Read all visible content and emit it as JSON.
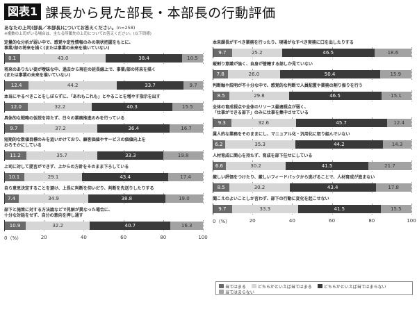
{
  "header": {
    "badge": "図表1",
    "title": "課長から見た部長・本部長の行動評価",
    "question": "あなたの上司(部長／本部長)についてお答えください。",
    "n": "(n=258)",
    "note": "※複数の上司がいる場合は、主たる所属先の上司についてお答えください。(以下同様)"
  },
  "colors": {
    "applies": "#6a6a6a",
    "somewhat_applies": "#d6d6d6",
    "somewhat_not": "#3a3a3a",
    "not_applies": "#a2a2a2"
  },
  "legend": {
    "items": [
      {
        "label": "当てはまる",
        "color": "#6a6a6a"
      },
      {
        "label": "どちらかといえば当てはまる",
        "color": "#d6d6d6"
      },
      {
        "label": "どちらかといえば当てはまらない",
        "color": "#3a3a3a"
      },
      {
        "label": "当てはまらない",
        "color": "#a2a2a2"
      }
    ]
  },
  "axis": {
    "ticks": [
      "0（%）",
      "20",
      "40",
      "60",
      "80",
      "100"
    ]
  },
  "left": {
    "items": [
      {
        "label1": "定量的な分析が弱い中で、感覚や定性情報のみの現状把握をもとに、",
        "label2": "事業/部の将来を描く(または事業の未来を描いていない)",
        "v": [
          "8.1",
          "43.0",
          "38.4",
          "10.5"
        ]
      },
      {
        "label1": "将来のありたい姿が曖昧な中、過去から現在の延長線上で、事業/部の将来を描く",
        "label2": "(または事業の未来を描いていない)",
        "v": [
          "12.4",
          "44.2",
          "33.7",
          "9.7"
        ]
      },
      {
        "label1": "本当にやるべきことをしぼらずに、「あれもこれも」とやることを増やす指示を出す",
        "label2": "",
        "v": [
          "12.0",
          "32.2",
          "40.3",
          "15.5"
        ]
      },
      {
        "label1": "具体的な戦略の仮説を持たず、日々の業務推進のみを行っている",
        "label2": "",
        "v": [
          "9.7",
          "37.2",
          "36.4",
          "16.7"
        ]
      },
      {
        "label1": "短期的な数値目標のみを追いかけており、顧客価値やサービスの価値向上を",
        "label2": "おろそかにしている",
        "v": [
          "11.2",
          "35.7",
          "33.3",
          "19.8"
        ]
      },
      {
        "label1": "上司に対して提言ができず、上からの方針をそのまま下ろしている",
        "label2": "",
        "v": [
          "10.1",
          "29.1",
          "43.4",
          "17.4"
        ]
      },
      {
        "label1": "自ら意思決定することを避け、上長に判断を仰いだり、判断を先送りしたりする",
        "label2": "",
        "v": [
          "7.4",
          "34.9",
          "38.8",
          "19.0"
        ]
      },
      {
        "label1": "部下と施策に対する方法論などで見解が異なった場合に、",
        "label2": "十分な対話をせず、自分の意向を押し通す",
        "v": [
          "10.9",
          "32.2",
          "40.7",
          "16.3"
        ]
      }
    ]
  },
  "right": {
    "items": [
      {
        "label1": "本来課長がすべき業務を行ったり、現場がなすべき実務に口を出したりする",
        "label2": "",
        "v": [
          "9.7",
          "25.2",
          "46.5",
          "18.6"
        ]
      },
      {
        "label1": "縦割り意識が強く、自身が管轄する部しか見ていない",
        "label2": "",
        "v": [
          "7.8",
          "26.0",
          "50.4",
          "15.9"
        ]
      },
      {
        "label1": "判断軸や説明が不十分な中で、感覚的な判断で人員配置や業務の割り振りを行う",
        "label2": "",
        "v": [
          "8.5",
          "29.8",
          "46.5",
          "15.1"
        ]
      },
      {
        "label1": "全体の育成視点や全体のリソース最適視点が弱く、",
        "label2": "「仕事ができる部下」のみに仕事を集中させている",
        "v": [
          "9.3",
          "32.6",
          "45.7",
          "12.4"
        ]
      },
      {
        "label1": "属人的な業務をそのままにし、マニュアル化・汎用化に取り組んでいない",
        "label2": "",
        "v": [
          "6.2",
          "35.3",
          "44.2",
          "14.3"
        ]
      },
      {
        "label1": "人材育成に関心を持たず、育成を部下任せにしている",
        "label2": "",
        "v": [
          "6.6",
          "30.2",
          "41.5",
          "21.7"
        ]
      },
      {
        "label1": "厳しい評価をつけたり、厳しいフィードバックから逃げることで、人材育成が進まない",
        "label2": "",
        "v": [
          "8.5",
          "30.2",
          "43.4",
          "17.8"
        ]
      },
      {
        "label1": "聞こえのよいことしか言わず、部下の行動に変化を起こせない",
        "label2": "",
        "v": [
          "9.7",
          "33.3",
          "41.5",
          "15.5"
        ]
      }
    ]
  },
  "chart_data": {
    "type": "bar",
    "stacked": true,
    "orientation": "horizontal",
    "title": "課長から見た部長・本部長の行動評価",
    "subtitle": "あなたの上司(部長／本部長)についてお答えください。(n=258)",
    "xlabel": "%",
    "xlim": [
      0,
      100
    ],
    "xticks": [
      0,
      20,
      40,
      60,
      80,
      100
    ],
    "legend_position": "bottom-right",
    "categories": [
      "定量的な分析が弱い中で、感覚や定性情報のみの現状把握をもとに、事業/部の将来を描く(または事業の未来を描いていない)",
      "将来のありたい姿が曖昧な中、過去から現在の延長線上で、事業/部の将来を描く(または事業の未来を描いていない)",
      "本当にやるべきことをしぼらずに、「あれもこれも」とやることを増やす指示を出す",
      "具体的な戦略の仮説を持たず、日々の業務推進のみを行っている",
      "短期的な数値目標のみを追いかけており、顧客価値やサービスの価値向上をおろそかにしている",
      "上司に対して提言ができず、上からの方針をそのまま下ろしている",
      "自ら意思決定することを避け、上長に判断を仰いだり、判断を先送りしたりする",
      "部下と施策に対する方法論などで見解が異なった場合に、十分な対話をせず、自分の意向を押し通す",
      "本来課長がすべき業務を行ったり、現場がなすべき実務に口を出したりする",
      "縦割り意識が強く、自身が管轄する部しか見ていない",
      "判断軸や説明が不十分な中で、感覚的な判断で人員配置や業務の割り振りを行う",
      "全体の育成視点や全体のリソース最適視点が弱く、「仕事ができる部下」のみに仕事を集中させている",
      "属人的な業務をそのままにし、マニュアル化・汎用化に取り組んでいない",
      "人材育成に関心を持たず、育成を部下任せにしている",
      "厳しい評価をつけたり、厳しいフィードバックから逃げることで、人材育成が進まない",
      "聞こえのよいことしか言わず、部下の行動に変化を起こせない"
    ],
    "series": [
      {
        "name": "当てはまる",
        "values": [
          8.1,
          12.4,
          12.0,
          9.7,
          11.2,
          10.1,
          7.4,
          10.9,
          9.7,
          7.8,
          8.5,
          9.3,
          6.2,
          6.6,
          8.5,
          9.7
        ]
      },
      {
        "name": "どちらかといえば当てはまる",
        "values": [
          43.0,
          44.2,
          32.2,
          37.2,
          35.7,
          29.1,
          34.9,
          32.2,
          25.2,
          26.0,
          29.8,
          32.6,
          35.3,
          30.2,
          30.2,
          33.3
        ]
      },
      {
        "name": "どちらかといえば当てはまらない",
        "values": [
          38.4,
          33.7,
          40.3,
          36.4,
          33.3,
          43.4,
          38.8,
          40.7,
          46.5,
          50.4,
          46.5,
          45.7,
          44.2,
          41.5,
          43.4,
          41.5
        ]
      },
      {
        "name": "当てはまらない",
        "values": [
          10.5,
          9.7,
          15.5,
          16.7,
          19.8,
          17.4,
          19.0,
          16.3,
          18.6,
          15.9,
          15.1,
          12.4,
          14.3,
          21.7,
          17.8,
          15.5
        ]
      }
    ]
  }
}
